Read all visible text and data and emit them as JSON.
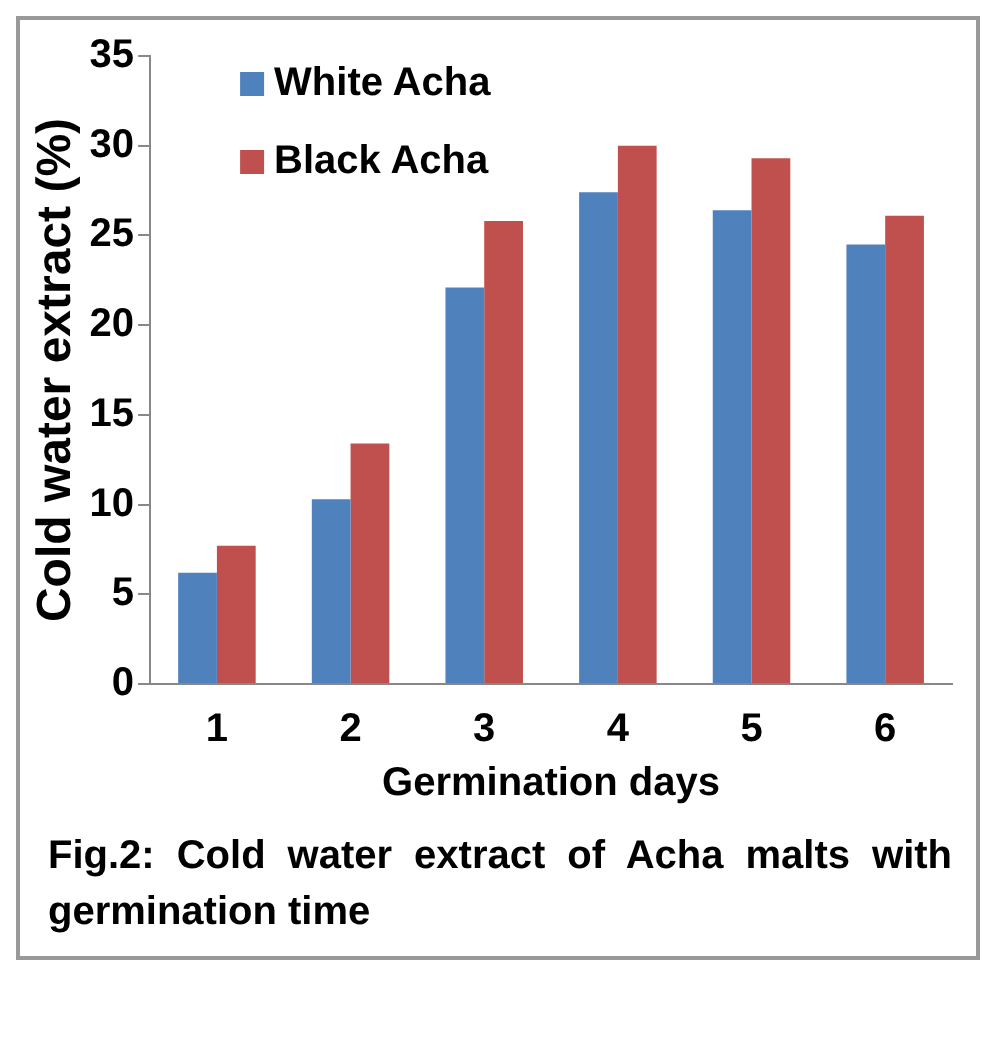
{
  "chart_data": {
    "type": "bar",
    "xlabel": "Germination days",
    "ylabel": "Cold water extract (%)",
    "categories": [
      "1",
      "2",
      "3",
      "4",
      "5",
      "6"
    ],
    "series": [
      {
        "name": "White Acha",
        "color": "#4f81bd",
        "values": [
          6.2,
          10.3,
          22.1,
          27.4,
          26.4,
          24.5
        ]
      },
      {
        "name": "Black Acha",
        "color": "#c0504d",
        "values": [
          7.7,
          13.4,
          25.8,
          30.0,
          29.3,
          26.1
        ]
      }
    ],
    "ylim": [
      0,
      35
    ],
    "yticks": [
      0,
      5,
      10,
      15,
      20,
      25,
      30,
      35
    ],
    "grid": false,
    "legend": "top left",
    "annotations": [
      "Fig.2: Cold water extract of Acha malts with germination time"
    ]
  }
}
